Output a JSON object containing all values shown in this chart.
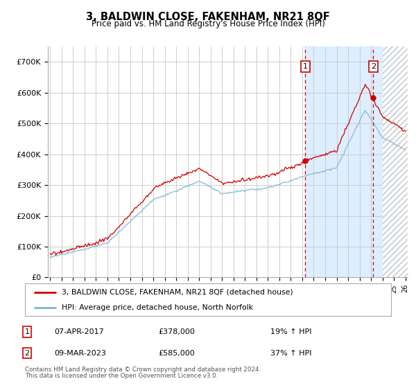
{
  "title": "3, BALDWIN CLOSE, FAKENHAM, NR21 8QF",
  "subtitle": "Price paid vs. HM Land Registry's House Price Index (HPI)",
  "ylim": [
    0,
    750000
  ],
  "yticks": [
    0,
    100000,
    200000,
    300000,
    400000,
    500000,
    600000,
    700000
  ],
  "ytick_labels": [
    "£0",
    "£100K",
    "£200K",
    "£300K",
    "£400K",
    "£500K",
    "£600K",
    "£700K"
  ],
  "x_start_year": 1995,
  "x_end_year": 2026,
  "hpi_color": "#7ab3d4",
  "price_color": "#cc0000",
  "blue_fill_color": "#ddeeff",
  "hatch_fill_color": "#e8e8e8",
  "marker1_year": 2017.27,
  "marker1_price": 378000,
  "marker1_label": "1",
  "marker1_date": "07-APR-2017",
  "marker1_hpi_pct": "19%",
  "marker2_year": 2023.19,
  "marker2_price": 585000,
  "marker2_label": "2",
  "marker2_date": "09-MAR-2023",
  "marker2_hpi_pct": "37%",
  "legend_price_label": "3, BALDWIN CLOSE, FAKENHAM, NR21 8QF (detached house)",
  "legend_hpi_label": "HPI: Average price, detached house, North Norfolk",
  "footer_line1": "Contains HM Land Registry data © Crown copyright and database right 2024.",
  "footer_line2": "This data is licensed under the Open Government Licence v3.0."
}
